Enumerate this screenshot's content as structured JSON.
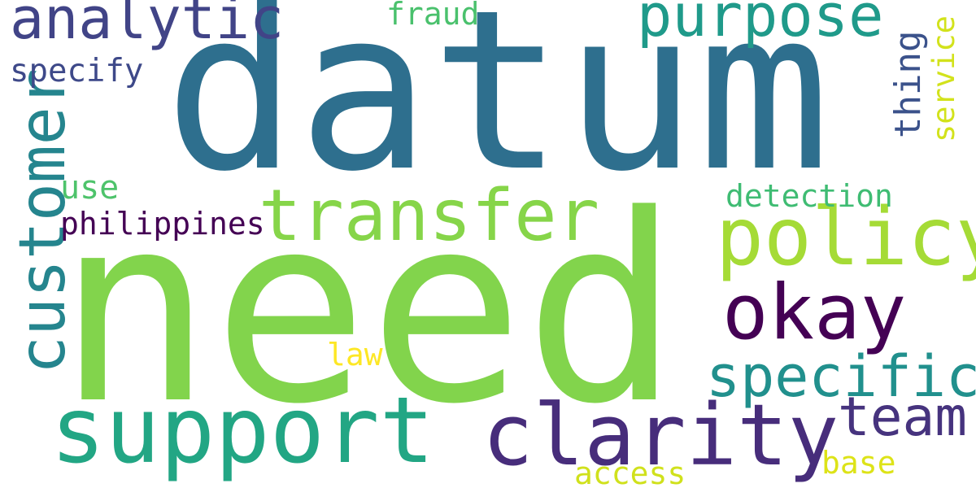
{
  "words": [
    {
      "key": "datum",
      "text": "datum",
      "color": "#2e6f8e"
    },
    {
      "key": "need",
      "text": "need",
      "color": "#82d44c"
    },
    {
      "key": "support",
      "text": "support",
      "color": "#22a684"
    },
    {
      "key": "clarity",
      "text": "clarity",
      "color": "#472d7b"
    },
    {
      "key": "transfer",
      "text": "transfer",
      "color": "#86d549"
    },
    {
      "key": "policy",
      "text": "policy",
      "color": "#a5db36"
    },
    {
      "key": "analytic",
      "text": "analytic",
      "color": "#414487"
    },
    {
      "key": "purpose",
      "text": "purpose",
      "color": "#1f9a8a"
    },
    {
      "key": "customer",
      "text": "customer",
      "color": "#25858e"
    },
    {
      "key": "okay",
      "text": "okay",
      "color": "#440154"
    },
    {
      "key": "specific",
      "text": "specific",
      "color": "#21908d"
    },
    {
      "key": "team",
      "text": "team",
      "color": "#46337e"
    },
    {
      "key": "fraud",
      "text": "fraud",
      "color": "#4ac16d"
    },
    {
      "key": "specify",
      "text": "specify",
      "color": "#3e4989"
    },
    {
      "key": "thing",
      "text": "thing",
      "color": "#3b528b"
    },
    {
      "key": "service",
      "text": "service",
      "color": "#d2e21b"
    },
    {
      "key": "use",
      "text": "use",
      "color": "#4ec36b"
    },
    {
      "key": "philippines",
      "text": "philippines",
      "color": "#440154"
    },
    {
      "key": "detection",
      "text": "detection",
      "color": "#3fbc73"
    },
    {
      "key": "law",
      "text": "law",
      "color": "#fde725"
    },
    {
      "key": "base",
      "text": "base",
      "color": "#dde318"
    },
    {
      "key": "access",
      "text": "access",
      "color": "#d0e11c"
    }
  ]
}
